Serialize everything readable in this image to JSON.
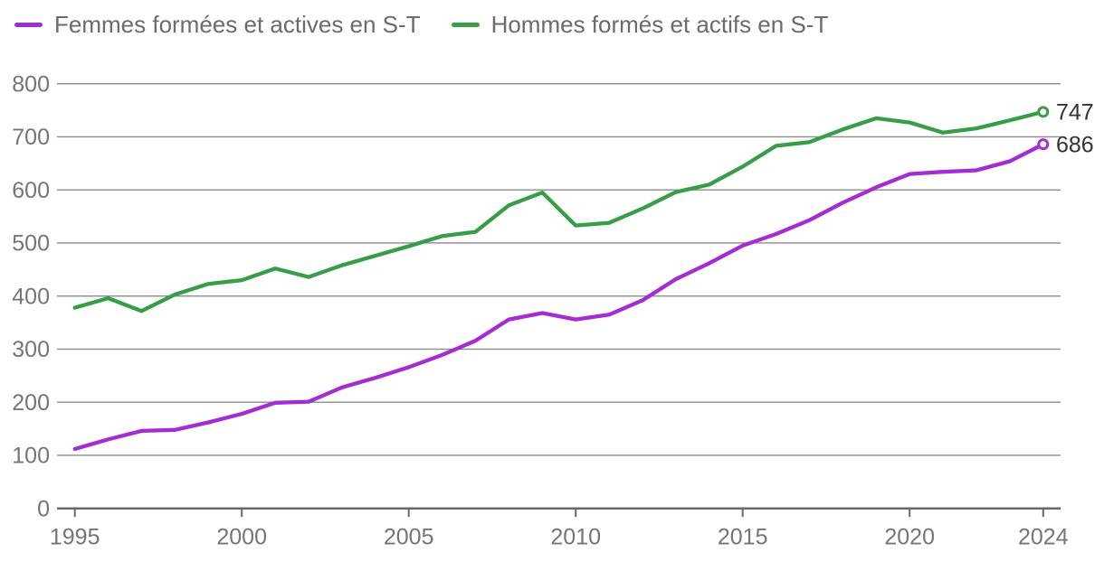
{
  "legend": {
    "items": [
      {
        "label": "Femmes formées et actives en S-T",
        "color": "#a32cd2"
      },
      {
        "label": "Hommes formés et actifs en S-T",
        "color": "#369e46"
      }
    ]
  },
  "chart_data": {
    "type": "line",
    "title": "",
    "xlabel": "",
    "ylabel": "",
    "x": [
      1995,
      1996,
      1997,
      1998,
      1999,
      2000,
      2001,
      2002,
      2003,
      2004,
      2005,
      2006,
      2007,
      2008,
      2009,
      2010,
      2011,
      2012,
      2013,
      2014,
      2015,
      2016,
      2017,
      2018,
      2019,
      2020,
      2021,
      2022,
      2023,
      2024
    ],
    "xticks": [
      1995,
      2000,
      2005,
      2010,
      2015,
      2020,
      2024
    ],
    "yticks": [
      0,
      100,
      200,
      300,
      400,
      500,
      600,
      700,
      800
    ],
    "ylim": [
      0,
      800
    ],
    "grid": true,
    "legend_position": "top-left",
    "series": [
      {
        "name": "Hommes formés et actifs en S-T",
        "color": "#369e46",
        "end_label": "747",
        "values": [
          378,
          396,
          372,
          403,
          423,
          430,
          452,
          436,
          458,
          476,
          494,
          513,
          521,
          571,
          595,
          533,
          538,
          565,
          596,
          610,
          644,
          683,
          690,
          714,
          735,
          727,
          708,
          716,
          731,
          747
        ]
      },
      {
        "name": "Femmes formées et actives en S-T",
        "color": "#a32cd2",
        "end_label": "686",
        "values": [
          112,
          130,
          146,
          148,
          162,
          178,
          199,
          201,
          228,
          246,
          266,
          289,
          316,
          356,
          368,
          356,
          365,
          392,
          432,
          462,
          495,
          517,
          543,
          576,
          605,
          630,
          634,
          637,
          654,
          686
        ]
      }
    ],
    "colors": {
      "grid": "#8c8c8c",
      "axis": "#696969",
      "tick_labels": "#757575",
      "end_labels": "#333333"
    }
  }
}
